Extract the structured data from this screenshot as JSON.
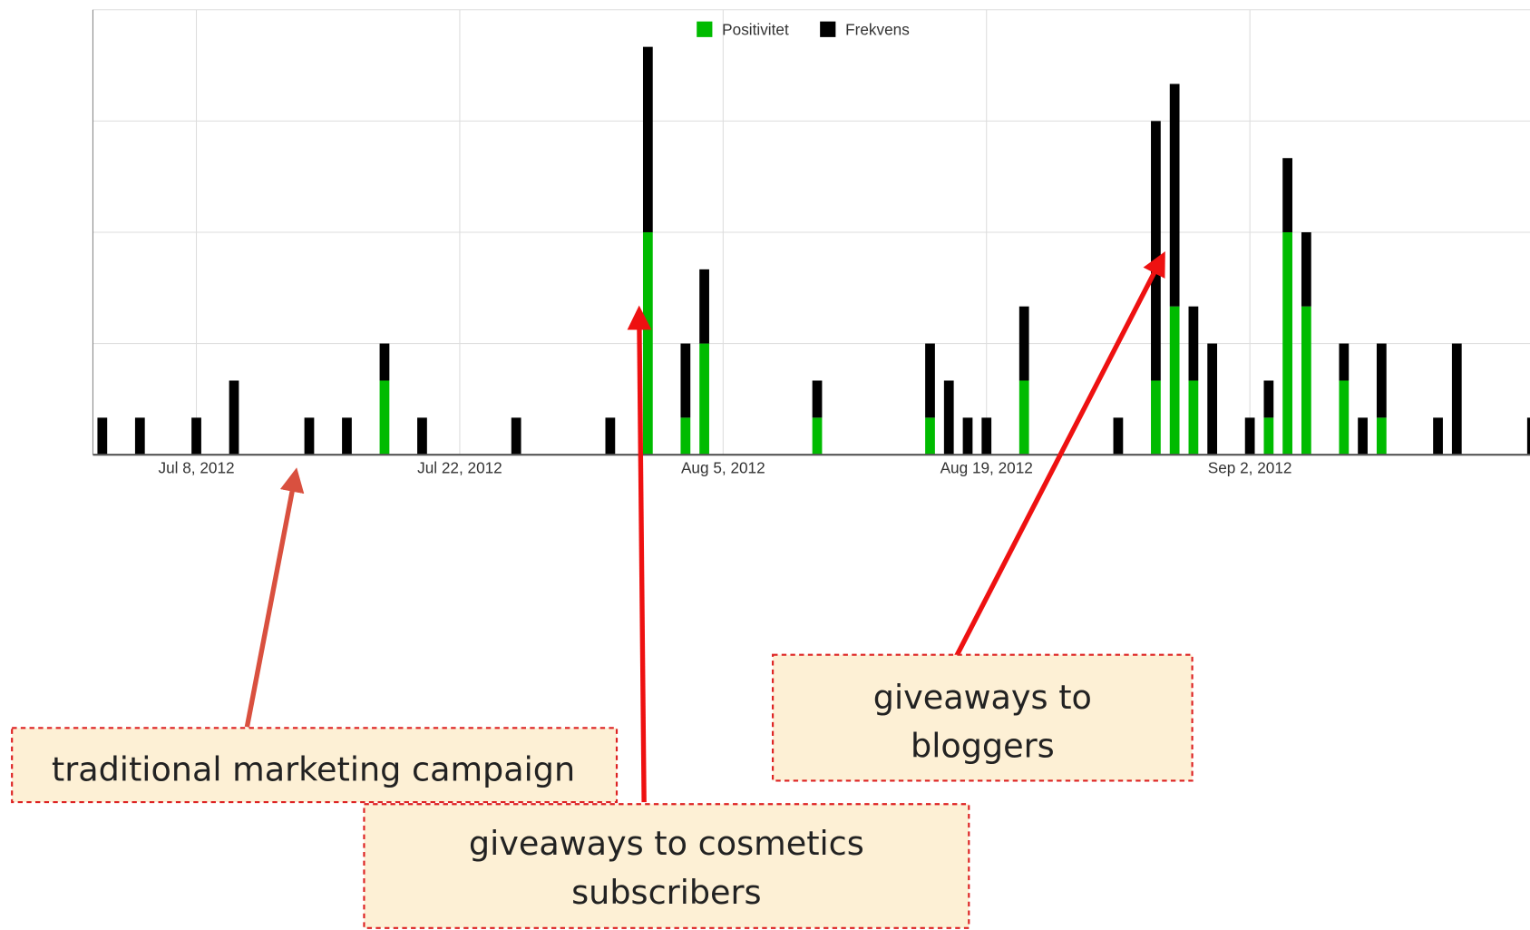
{
  "chart_data": {
    "type": "bar",
    "stacked": true,
    "x": [
      "2012-07-03",
      "2012-07-05",
      "2012-07-08",
      "2012-07-10",
      "2012-07-14",
      "2012-07-16",
      "2012-07-18",
      "2012-07-20",
      "2012-07-25",
      "2012-07-30",
      "2012-08-01",
      "2012-08-03",
      "2012-08-04",
      "2012-08-10",
      "2012-08-16",
      "2012-08-17",
      "2012-08-18",
      "2012-08-19",
      "2012-08-21",
      "2012-08-26",
      "2012-08-28",
      "2012-08-29",
      "2012-08-30",
      "2012-08-31",
      "2012-09-02",
      "2012-09-03",
      "2012-09-04",
      "2012-09-05",
      "2012-09-07",
      "2012-09-08",
      "2012-09-09",
      "2012-09-12",
      "2012-09-13",
      "2012-09-17"
    ],
    "series": [
      {
        "name": "Positivitet",
        "color": "#00bb00",
        "values": [
          0,
          0,
          0,
          0,
          0,
          0,
          2,
          0,
          0,
          0,
          6,
          1,
          3,
          1,
          1,
          0,
          0,
          0,
          2,
          0,
          2,
          4,
          2,
          0,
          0,
          1,
          6,
          4,
          2,
          0,
          1,
          0,
          0,
          0
        ]
      },
      {
        "name": "Frekvens",
        "color": "#000000",
        "values": [
          1,
          1,
          1,
          2,
          1,
          1,
          1,
          1,
          1,
          1,
          5,
          2,
          2,
          1,
          2,
          2,
          1,
          1,
          2,
          1,
          7,
          6,
          2,
          3,
          1,
          1,
          2,
          2,
          1,
          1,
          2,
          1,
          3,
          1
        ]
      }
    ],
    "xlim": [
      "2012-07-02T12",
      "2012-09-17T12"
    ],
    "xticks": [
      {
        "value": "2012-07-08",
        "label": "Jul 8, 2012"
      },
      {
        "value": "2012-07-22",
        "label": "Jul 22, 2012"
      },
      {
        "value": "2012-08-05",
        "label": "Aug 5, 2012"
      },
      {
        "value": "2012-08-19",
        "label": "Aug 19, 2012"
      },
      {
        "value": "2012-09-02",
        "label": "Sep 2, 2012"
      }
    ],
    "ylim": [
      0,
      12
    ],
    "yticks": [
      0,
      3,
      6,
      9,
      12
    ],
    "grid": true,
    "legend": "top",
    "annotations": [
      {
        "lines": [
          "traditional marketing campaign"
        ]
      },
      {
        "lines": [
          "giveaways to cosmetics",
          "subscribers"
        ]
      },
      {
        "lines": [
          "giveaways to",
          "bloggers"
        ]
      }
    ]
  }
}
